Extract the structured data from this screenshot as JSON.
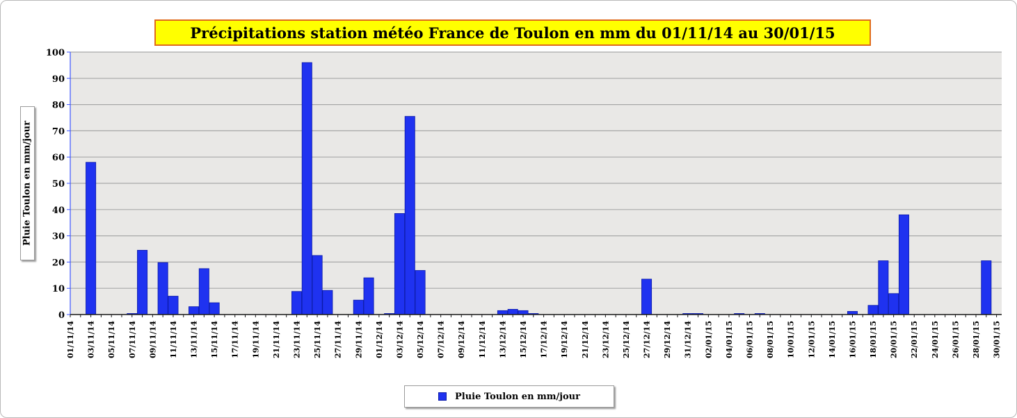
{
  "chart_data": {
    "type": "bar",
    "title": "Précipitations station météo France de Toulon en mm du 01/11/14 au 30/01/15",
    "ylabel": "Pluie Toulon en mm/jour",
    "xlabel": "",
    "ylim": [
      0,
      100
    ],
    "yticks": [
      0,
      10,
      20,
      30,
      40,
      50,
      60,
      70,
      80,
      90,
      100
    ],
    "grid": true,
    "legend_position": "bottom-center",
    "colors": {
      "bar": "#1f32f0",
      "bar_edge": "#0b1aa8",
      "plot_bg": "#e9e8e6",
      "grid": "#a8a8a8",
      "title_bg": "#ffff00",
      "title_border": "#e06a1c"
    },
    "categories": [
      "01/11/14",
      "02/11/14",
      "03/11/14",
      "04/11/14",
      "05/11/14",
      "06/11/14",
      "07/11/14",
      "08/11/14",
      "09/11/14",
      "10/11/14",
      "11/11/14",
      "12/11/14",
      "13/11/14",
      "14/11/14",
      "15/11/14",
      "16/11/14",
      "17/11/14",
      "18/11/14",
      "19/11/14",
      "20/11/14",
      "21/11/14",
      "22/11/14",
      "23/11/14",
      "24/11/14",
      "25/11/14",
      "26/11/14",
      "27/11/14",
      "28/11/14",
      "29/11/14",
      "30/11/14",
      "01/12/14",
      "02/12/14",
      "03/12/14",
      "04/12/14",
      "05/12/14",
      "06/12/14",
      "07/12/14",
      "08/12/14",
      "09/12/14",
      "10/12/14",
      "11/12/14",
      "12/12/14",
      "13/12/14",
      "14/12/14",
      "15/12/14",
      "16/12/14",
      "17/12/14",
      "18/12/14",
      "19/12/14",
      "20/12/14",
      "21/12/14",
      "22/12/14",
      "23/12/14",
      "24/12/14",
      "25/12/14",
      "26/12/14",
      "27/12/14",
      "28/12/14",
      "29/12/14",
      "30/12/14",
      "31/12/14",
      "01/01/15",
      "02/01/15",
      "03/01/15",
      "04/01/15",
      "05/01/15",
      "06/01/15",
      "07/01/15",
      "08/01/15",
      "09/01/15",
      "10/01/15",
      "11/01/15",
      "12/01/15",
      "13/01/15",
      "14/01/15",
      "15/01/15",
      "16/01/15",
      "17/01/15",
      "18/01/15",
      "19/01/15",
      "20/01/15",
      "21/01/15",
      "22/01/15",
      "23/01/15",
      "24/01/15",
      "25/01/15",
      "26/01/15",
      "27/01/15",
      "28/01/15",
      "29/01/15",
      "30/01/15"
    ],
    "tick_labels": [
      "01/11/14",
      "03/11/14",
      "05/11/14",
      "07/11/14",
      "09/11/14",
      "11/11/14",
      "13/11/14",
      "15/11/14",
      "17/11/14",
      "19/11/14",
      "21/11/14",
      "23/11/14",
      "25/11/14",
      "27/11/14",
      "29/11/14",
      "01/12/14",
      "03/12/14",
      "05/12/14",
      "07/12/14",
      "09/12/14",
      "11/12/14",
      "13/12/14",
      "15/12/14",
      "17/12/14",
      "19/12/14",
      "21/12/14",
      "23/12/14",
      "25/12/14",
      "27/12/14",
      "29/12/14",
      "31/12/14",
      "02/01/15",
      "04/01/15",
      "06/01/15",
      "08/01/15",
      "10/01/15",
      "12/01/15",
      "14/01/15",
      "16/01/15",
      "18/01/15",
      "20/01/15",
      "22/01/15",
      "24/01/15",
      "26/01/15",
      "28/01/15",
      "30/01/15"
    ],
    "series": [
      {
        "name": "Pluie Toulon en mm/jour",
        "values": [
          0,
          0,
          58,
          0,
          0,
          0,
          0.4,
          24.5,
          0,
          19.8,
          7,
          0,
          3,
          17.5,
          4.5,
          0,
          0,
          0,
          0,
          0,
          0,
          0,
          8.8,
          96,
          22.5,
          9.2,
          0,
          0,
          5.5,
          14,
          0,
          0.4,
          38.5,
          75.5,
          16.8,
          0,
          0,
          0,
          0,
          0,
          0,
          0,
          1.5,
          2,
          1.5,
          0.4,
          0,
          0,
          0,
          0,
          0,
          0,
          0,
          0,
          0,
          0,
          13.5,
          0,
          0,
          0,
          0.4,
          0.4,
          0,
          0,
          0,
          0.4,
          0,
          0.4,
          0,
          0,
          0,
          0,
          0,
          0,
          0,
          0,
          1.2,
          0,
          3.5,
          20.5,
          8,
          38,
          0,
          0,
          0,
          0,
          0,
          0,
          0,
          20.5,
          0
        ]
      }
    ]
  }
}
